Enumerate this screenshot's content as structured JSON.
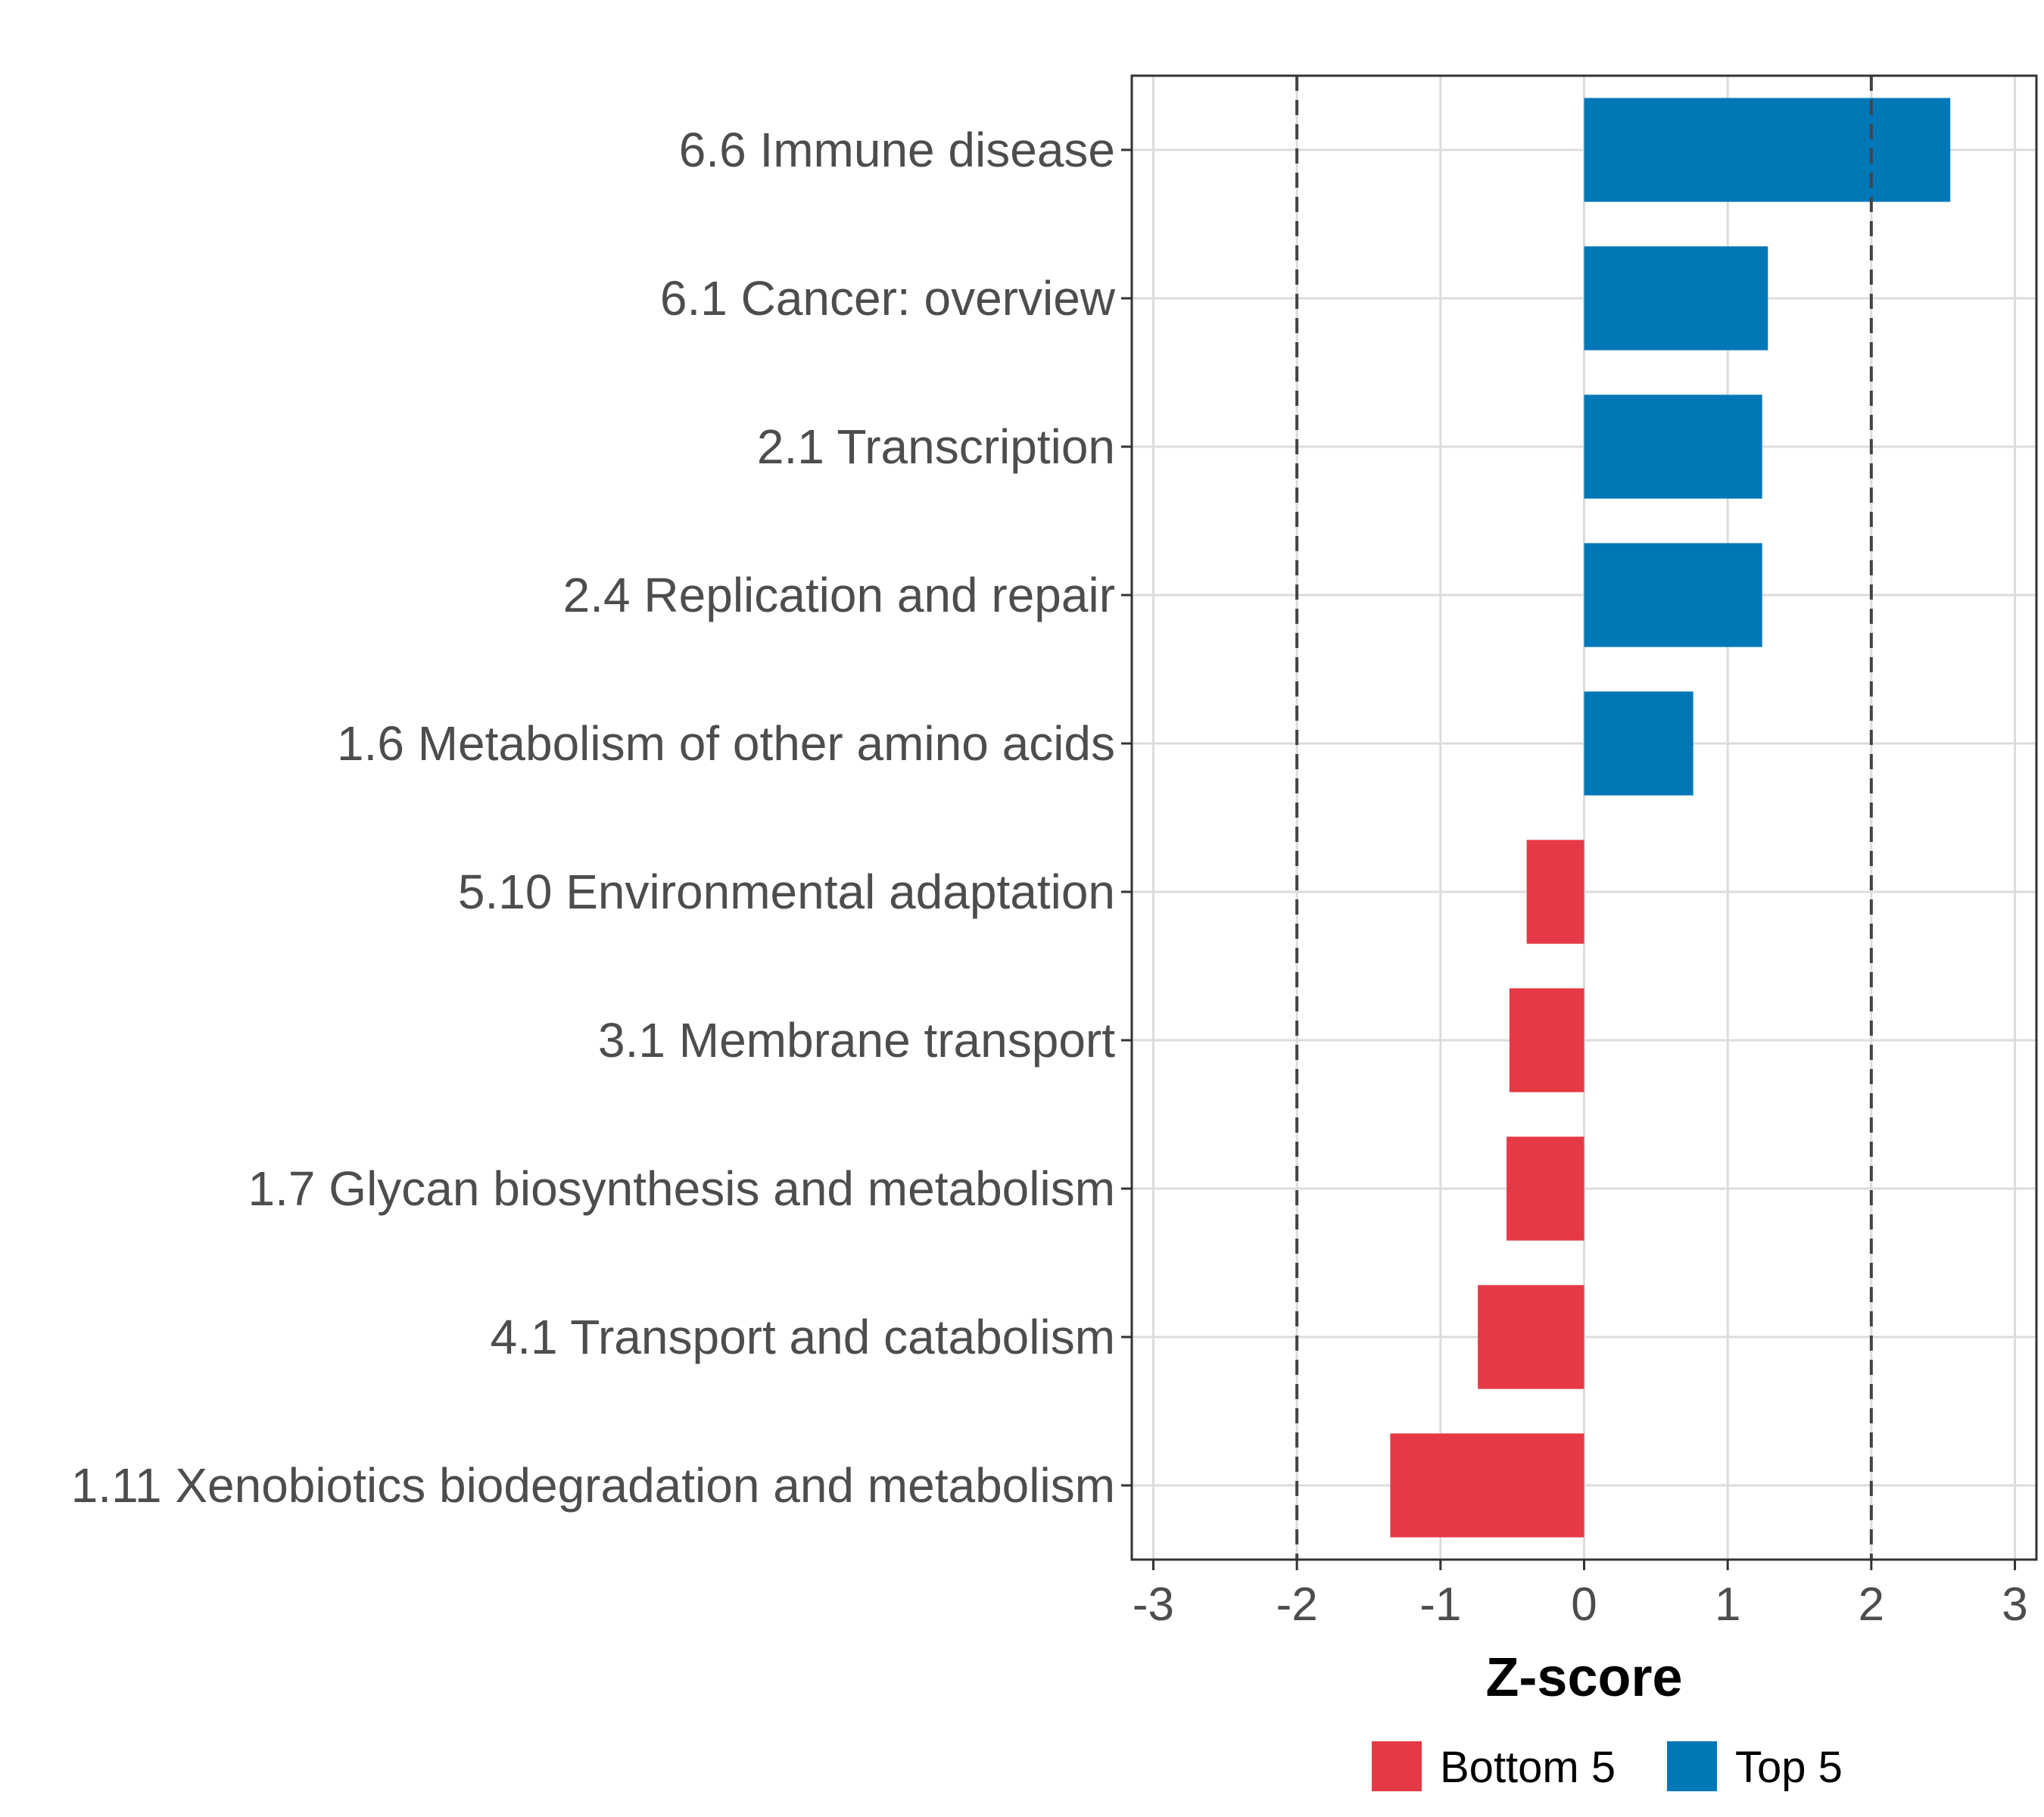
{
  "chart_data": {
    "type": "bar",
    "orientation": "horizontal",
    "title": "",
    "xlabel": "Z-score",
    "ylabel": "",
    "xlim": [
      -3.15,
      3.15
    ],
    "xticks": [
      -3,
      -2,
      -1,
      0,
      1,
      2,
      3
    ],
    "reference_lines": [
      -2,
      2
    ],
    "grid": true,
    "legend_position": "bottom",
    "categories": [
      "6.6 Immune disease",
      "6.1 Cancer: overview",
      "2.1 Transcription",
      "2.4 Replication and repair",
      "1.6 Metabolism of other amino acids",
      "5.10 Environmental adaptation",
      "3.1 Membrane transport",
      "1.7 Glycan biosynthesis and metabolism",
      "4.1 Transport and catabolism",
      "1.11 Xenobiotics biodegradation and metabolism"
    ],
    "values": [
      2.55,
      1.28,
      1.24,
      1.24,
      0.76,
      -0.4,
      -0.52,
      -0.54,
      -0.74,
      -1.35
    ],
    "groups": [
      "Top 5",
      "Top 5",
      "Top 5",
      "Top 5",
      "Top 5",
      "Bottom 5",
      "Bottom 5",
      "Bottom 5",
      "Bottom 5",
      "Bottom 5"
    ],
    "legend": [
      {
        "name": "Bottom 5",
        "color": "#E63946"
      },
      {
        "name": "Top 5",
        "color": "#0077B6"
      }
    ]
  }
}
